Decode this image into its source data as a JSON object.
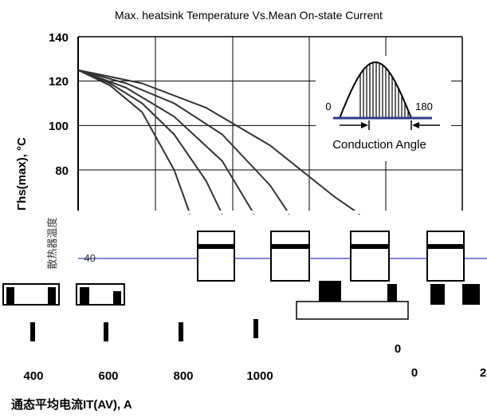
{
  "chart_data": {
    "type": "line",
    "title": "Max. heatsink Temperature Vs.Mean On-state Current",
    "ylabel": "Γhs(max), °C",
    "xlabel": "通态平均电流IT(AV), A",
    "ylim": [
      20,
      140
    ],
    "xlim": [
      0,
      1200
    ],
    "y_ticks": [
      "140",
      "120",
      "100",
      "80"
    ],
    "x_ticks": [
      "400",
      "600",
      "800",
      "1000"
    ],
    "grid": true,
    "series": [
      {
        "x": [
          0,
          100,
          200,
          300,
          350
        ],
        "y": [
          125,
          118,
          106,
          80,
          60
        ]
      },
      {
        "x": [
          0,
          100,
          200,
          300,
          400,
          450
        ],
        "y": [
          125,
          119,
          110,
          96,
          75,
          60
        ]
      },
      {
        "x": [
          0,
          150,
          300,
          450,
          550
        ],
        "y": [
          125,
          117,
          104,
          84,
          60
        ]
      },
      {
        "x": [
          0,
          150,
          300,
          450,
          600,
          660
        ],
        "y": [
          125,
          119,
          110,
          96,
          73,
          60
        ]
      },
      {
        "x": [
          0,
          200,
          400,
          600,
          800,
          880
        ],
        "y": [
          125,
          119,
          108,
          91,
          68,
          60
        ]
      }
    ],
    "inset": {
      "left_label": "0",
      "right_label": "180",
      "caption": "Conduction Angle"
    },
    "artifact_labels": {
      "rotated_ylabel_cn": "散热器温度",
      "tick_40": "40",
      "right_tick_0": "0",
      "right_tick_0b": "0",
      "right_tick_2": "2"
    }
  },
  "colors": {
    "axis": "#000000",
    "grid": "#000000",
    "series": "#333333",
    "inset_base": "#2b3a8c",
    "glitch_line": "#3b3bcc"
  }
}
